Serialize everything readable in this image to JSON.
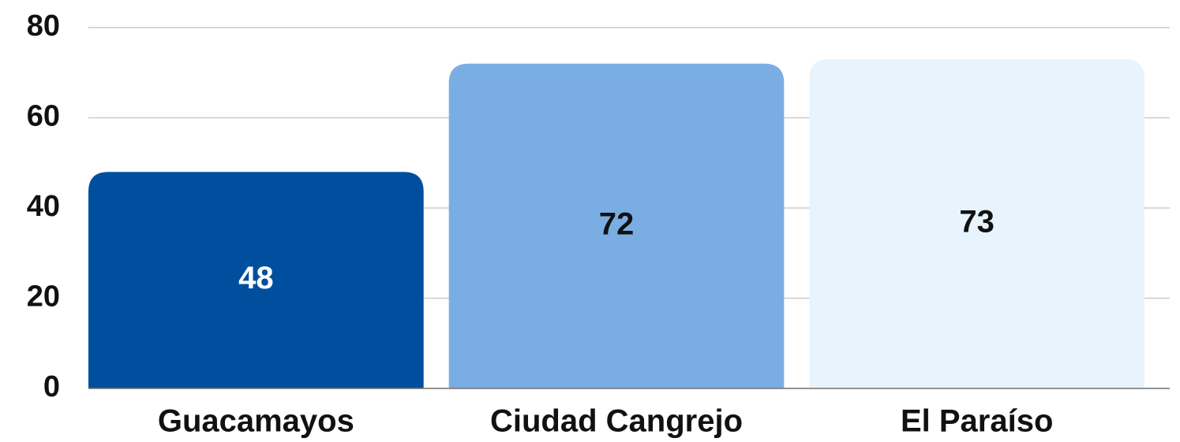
{
  "chart_data": {
    "type": "bar",
    "categories": [
      "Guacamayos",
      "Ciudad Cangrejo",
      "El Paraíso"
    ],
    "values": [
      48,
      72,
      73
    ],
    "colors": [
      "#004f9e",
      "#7aaee3",
      "#e8f4fd"
    ],
    "ylim": [
      0,
      80
    ],
    "yticks": [
      0,
      20,
      40,
      60,
      80
    ],
    "grid": true
  }
}
